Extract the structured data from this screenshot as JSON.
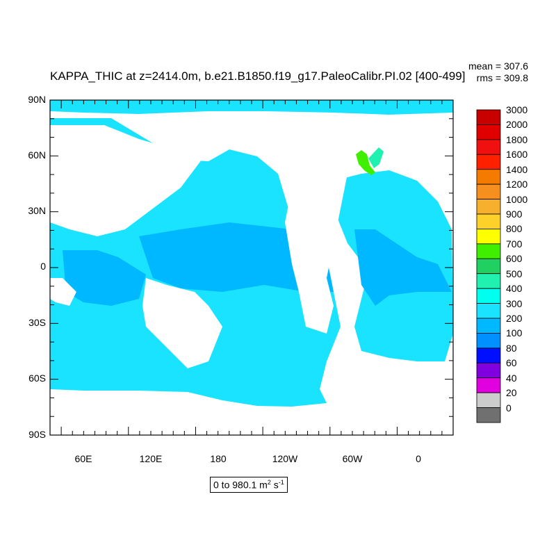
{
  "title": "KAPPA_THIC at z=2414.0m, b.e21.B1850.f19_g17.PaleoCalibr.PI.02 [400-499]",
  "stats": {
    "mean": "mean = 307.6",
    "rms": "rms = 309.8"
  },
  "range": {
    "text": "0 to 980.1 m",
    "unit_exp1": "2",
    "unit_mid": " s",
    "unit_exp2": "-1"
  },
  "axes": {
    "lat_labels": [
      "90N",
      "60N",
      "30N",
      "0",
      "30S",
      "60S",
      "90S"
    ],
    "lon_labels": [
      "60E",
      "120E",
      "180",
      "120W",
      "60W",
      "0"
    ]
  },
  "legend": {
    "labels": [
      "3000",
      "2000",
      "1800",
      "1600",
      "1400",
      "1200",
      "1000",
      "900",
      "800",
      "700",
      "600",
      "500",
      "400",
      "300",
      "200",
      "100",
      "80",
      "60",
      "40",
      "20",
      "0"
    ],
    "colors": [
      "#c80000",
      "#e00000",
      "#f01010",
      "#ff2000",
      "#f57a00",
      "#f5901e",
      "#f6b02e",
      "#fdd12a",
      "#ffff00",
      "#40ee00",
      "#20d060",
      "#20f0b0",
      "#00ffee",
      "#1ae3ff",
      "#00b8ff",
      "#0090ff",
      "#0010ff",
      "#8000e0",
      "#e000e0",
      "#cccccc",
      "#707070"
    ]
  },
  "colors": {
    "ocean_base": "#1ae3ff",
    "ocean_deep": "#00b8ff",
    "land": "#ffffff",
    "hotspot": "#40ee00"
  }
}
